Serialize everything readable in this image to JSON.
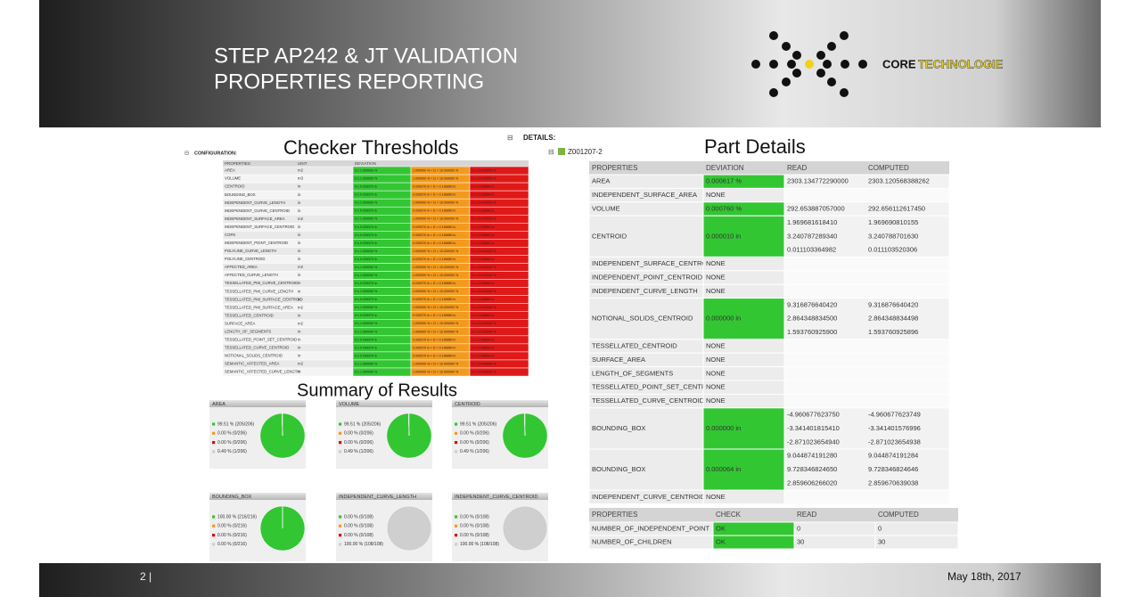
{
  "header": {
    "title_lines": [
      "STEP AP242 & JT VALIDATION",
      "PROPERTIES REPORTING"
    ]
  },
  "logo": {
    "part1": "CORE",
    "part2": "TECHNOLOGIE"
  },
  "thresholds": {
    "heading": "Checker Thresholds",
    "config_label": "CONFIGURATION:",
    "columns": [
      "PROPERTIES",
      "UNIT",
      "DEVIATION"
    ],
    "colors": [
      "#33c633",
      "#f39a1e",
      "#e01818"
    ],
    "rows": [
      [
        "AREA",
        "m2",
        "0 ≤ 1.000000 %",
        "1.000000 % < D < 10.000000 %",
        "D ≥ 10.000000 %"
      ],
      [
        "VOLUME",
        "m3",
        "0 ≤ 1.000000 %",
        "1.000000 % < D < 10.000000 %",
        "D ≥ 10.000000 %"
      ],
      [
        "CENTROID",
        "in",
        "0 ≤ 0.039370 in",
        "0.039370 in < D < 0.196850 in",
        "D ≥ 0.196850 in"
      ],
      [
        "BOUNDING_BOX",
        "in",
        "0 ≤ 0.039370 in",
        "0.039370 in < D < 0.196850 in",
        "D ≥ 0.196850 in"
      ],
      [
        "INDEPENDENT_CURVE_LENGTH",
        "in",
        "0 ≤ 1.000000 %",
        "1.000000 % < D < 10.000000 %",
        "D ≥ 10.000000 %"
      ],
      [
        "INDEPENDENT_CURVE_CENTROID",
        "in",
        "0 ≤ 0.039370 in",
        "0.039370 in < D < 0.196850 in",
        "D ≥ 0.196850 in"
      ],
      [
        "INDEPENDENT_SURFACE_AREA",
        "m2",
        "0 ≤ 1.000000 %",
        "1.000000 % < D < 10.000000 %",
        "D ≥ 10.000000 %"
      ],
      [
        "INDEPENDENT_SURFACE_CENTROID",
        "in",
        "0 ≤ 0.039370 in",
        "0.039370 in < D < 0.196850 in",
        "D ≥ 0.196850 in"
      ],
      [
        "COPS",
        "in",
        "0 ≤ 0.039370 in",
        "0.039370 in < D < 0.196850 in",
        "D ≥ 0.196850 in"
      ],
      [
        "INDEPENDENT_POINT_CENTROID",
        "in",
        "0 ≤ 0.039370 in",
        "0.039370 in < D < 0.196850 in",
        "D ≥ 0.196850 in"
      ],
      [
        "POLYLINE_CURVE_LENGTH",
        "in",
        "0 ≤ 1.000000 %",
        "1.000000 % < D < 10.000000 %",
        "D ≥ 10.000000 %"
      ],
      [
        "POLYLINE_CENTROID",
        "in",
        "0 ≤ 0.039370 in",
        "0.039370 in < D < 0.196850 in",
        "D ≥ 0.196850 in"
      ],
      [
        "AFFECTED_AREA",
        "m2",
        "0 ≤ 1.000000 %",
        "1.000000 % < D < 10.000000 %",
        "D ≥ 10.000000 %"
      ],
      [
        "AFFECTED_CURVE_LENGTH",
        "in",
        "0 ≤ 1.000000 %",
        "1.000000 % < D < 10.000000 %",
        "D ≥ 10.000000 %"
      ],
      [
        "TESSELLATED_PMI_CURVE_CENTROID",
        "in",
        "0 ≤ 0.039370 in",
        "0.039370 in < D < 0.196850 in",
        "D ≥ 0.196850 in"
      ],
      [
        "TESSELLATED_PMI_CURVE_LENGTH",
        "in",
        "0 ≤ 1.000000 %",
        "1.000000 % < D < 10.000000 %",
        "D ≥ 10.000000 %"
      ],
      [
        "TESSELLATED_PMI_SURFACE_CENTROID",
        "in",
        "0 ≤ 0.039370 in",
        "0.039370 in < D < 0.196850 in",
        "D ≥ 0.196850 in"
      ],
      [
        "TESSELLATED_PMI_SURFACE_AREA",
        "m2",
        "0 ≤ 1.000000 %",
        "1.000000 % < D < 10.000000 %",
        "D ≥ 10.000000 %"
      ],
      [
        "TESSELLATED_CENTROID",
        "in",
        "0 ≤ 0.039370 in",
        "0.039370 in < D < 0.196850 in",
        "D ≥ 0.196850 in"
      ],
      [
        "SURFACE_AREA",
        "m2",
        "0 ≤ 1.000000 %",
        "1.000000 % < D < 10.000000 %",
        "D ≥ 10.000000 %"
      ],
      [
        "LENGTH_OF_SEGMENTS",
        "in",
        "0 ≤ 1.000000 %",
        "1.000000 % < D < 10.000000 %",
        "D ≥ 10.000000 %"
      ],
      [
        "TESSELLATED_POINT_SET_CENTROID",
        "in",
        "0 ≤ 0.039370 in",
        "0.039370 in < D < 0.196850 in",
        "D ≥ 0.196850 in"
      ],
      [
        "TESSELLATED_CURVE_CENTROID",
        "in",
        "0 ≤ 0.039370 in",
        "0.039370 in < D < 0.196850 in",
        "D ≥ 0.196850 in"
      ],
      [
        "NOTIONAL_SOLIDS_CENTROID",
        "in",
        "0 ≤ 0.039370 in",
        "0.039370 in < D < 0.196850 in",
        "D ≥ 0.196850 in"
      ],
      [
        "SEMANTIC_AFFECTED_AREA",
        "m2",
        "0 ≤ 1.000000 %",
        "1.000000 % < D < 10.000000 %",
        "D ≥ 10.000000 %"
      ],
      [
        "SEMANTIC_AFFECTED_CURVE_LENGTH",
        "in",
        "0 ≤ 1.000000 %",
        "1.000000 % < D < 10.000000 %",
        "D ≥ 10.000000 %"
      ]
    ]
  },
  "summary": {
    "heading": "Summary of Results",
    "colors": [
      "#33c633",
      "#f39a1e",
      "#d01010",
      "#cfcfcf"
    ],
    "charts": [
      {
        "title": "AREA",
        "values": [
          99.51,
          0,
          0,
          0.49
        ],
        "labels": [
          "99.51 % (205/206)",
          "0.00 % (0/206)",
          "0.00 % (0/206)",
          "0.49 % (1/206)"
        ]
      },
      {
        "title": "VOLUME",
        "values": [
          99.51,
          0,
          0,
          0.49
        ],
        "labels": [
          "99.51 % (205/206)",
          "0.00 % (0/206)",
          "0.00 % (0/206)",
          "0.49 % (1/206)"
        ]
      },
      {
        "title": "CENTROID",
        "values": [
          99.51,
          0,
          0,
          0.49
        ],
        "labels": [
          "99.51 % (205/206)",
          "0.00 % (0/206)",
          "0.00 % (0/206)",
          "0.49 % (1/206)"
        ]
      },
      {
        "title": "BOUNDING_BOX",
        "values": [
          100,
          0,
          0,
          0
        ],
        "labels": [
          "100.00 % (216/216)",
          "0.00 % (0/216)",
          "0.00 % (0/216)",
          "0.00 % (0/216)"
        ]
      },
      {
        "title": "INDEPENDENT_CURVE_LENGTH",
        "values": [
          0,
          0,
          0,
          100
        ],
        "labels": [
          "0.00 % (0/108)",
          "0.00 % (0/108)",
          "0.00 % (0/108)",
          "100.00 % (108/108)"
        ]
      },
      {
        "title": "INDEPENDENT_CURVE_CENTROID",
        "values": [
          0,
          0,
          0,
          100
        ],
        "labels": [
          "0.00 % (0/108)",
          "0.00 % (0/108)",
          "0.00 % (0/108)",
          "100.00 % (108/108)"
        ]
      }
    ]
  },
  "details": {
    "label": "DETAILS:",
    "part": "Z001207-2",
    "heading": "Part Details",
    "columns": [
      "PROPERTIES",
      "DEVIATION",
      "READ",
      "COMPUTED"
    ],
    "rows": [
      {
        "property": "AREA",
        "deviation": "0.000617 %",
        "read": [
          "2303.134772290000"
        ],
        "computed": [
          "2303.120568388262"
        ]
      },
      {
        "property": "INDEPENDENT_SURFACE_AREA",
        "deviation": "NONE",
        "read": [],
        "computed": []
      },
      {
        "property": "VOLUME",
        "deviation": "0.000760 %",
        "read": [
          "292.653887057000"
        ],
        "computed": [
          "292.656112617450"
        ]
      },
      {
        "property": "CENTROID",
        "deviation": "0.000010 in",
        "read": [
          "1.969681618410",
          "3.240787289340",
          "0.011103364982"
        ],
        "computed": [
          "1.969690810155",
          "3.240788701630",
          "0.011103520306"
        ]
      },
      {
        "property": "INDEPENDENT_SURFACE_CENTROID",
        "deviation": "NONE",
        "read": [],
        "computed": []
      },
      {
        "property": "INDEPENDENT_POINT_CENTROID",
        "deviation": "NONE",
        "read": [],
        "computed": []
      },
      {
        "property": "INDEPENDENT_CURVE_LENGTH",
        "deviation": "NONE",
        "read": [],
        "computed": []
      },
      {
        "property": "NOTIONAL_SOLIDS_CENTROID",
        "deviation": "0.000000 in",
        "read": [
          "9.316876640420",
          "2.864348834500",
          "1.593760925900"
        ],
        "computed": [
          "9.316876640420",
          "2.864348834498",
          "1.593760925896"
        ]
      },
      {
        "property": "TESSELLATED_CENTROID",
        "deviation": "NONE",
        "read": [],
        "computed": []
      },
      {
        "property": "SURFACE_AREA",
        "deviation": "NONE",
        "read": [],
        "computed": []
      },
      {
        "property": "LENGTH_OF_SEGMENTS",
        "deviation": "NONE",
        "read": [],
        "computed": []
      },
      {
        "property": "TESSELLATED_POINT_SET_CENTROID",
        "deviation": "NONE",
        "read": [],
        "computed": []
      },
      {
        "property": "TESSELLATED_CURVE_CENTROID",
        "deviation": "NONE",
        "read": [],
        "computed": []
      },
      {
        "property": "BOUNDING_BOX",
        "deviation": "0.000000 in",
        "read": [
          "-4.960677623750",
          "-3.341401815410",
          "-2.871023654940"
        ],
        "computed": [
          "-4.960677623749",
          "-3.341401576996",
          "-2.871023654938"
        ]
      },
      {
        "property": "BOUNDING_BOX",
        "deviation": "0.000064 in",
        "read": [
          "9.044874191280",
          "9.728346824650",
          "2.859606266020"
        ],
        "computed": [
          "9.044874191284",
          "9.728346824646",
          "2.859670639038"
        ]
      },
      {
        "property": "INDEPENDENT_CURVE_CENTROID",
        "deviation": "NONE",
        "read": [],
        "computed": []
      }
    ]
  },
  "checks": {
    "columns": [
      "PROPERTIES",
      "CHECK",
      "READ",
      "COMPUTED"
    ],
    "rows": [
      [
        "NUMBER_OF_INDEPENDENT_POINT",
        "OK",
        "0",
        "0"
      ],
      [
        "NUMBER_OF_CHILDREN",
        "OK",
        "30",
        "30"
      ]
    ]
  },
  "footer": {
    "page": "2 |",
    "date": "May 18th, 2017"
  }
}
